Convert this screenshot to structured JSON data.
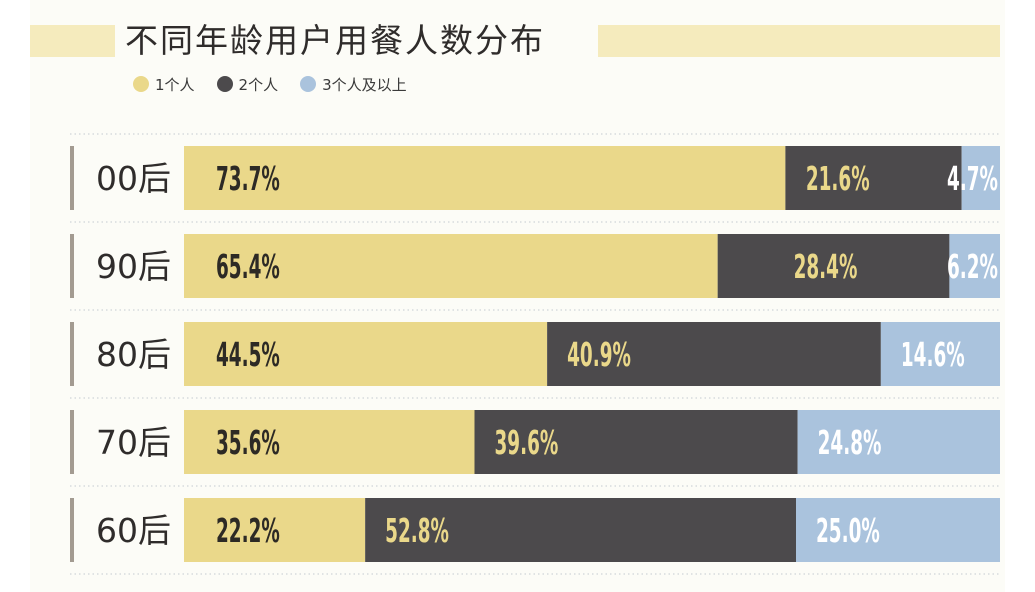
{
  "chart_data": {
    "type": "bar",
    "stacked": true,
    "orientation": "horizontal",
    "title": "不同年龄用户用餐人数分布",
    "categories": [
      "00后",
      "90后",
      "80后",
      "70后",
      "60后"
    ],
    "series": [
      {
        "name": "1个人",
        "color": "#ead88a",
        "values": [
          73.7,
          65.4,
          44.5,
          35.6,
          22.2
        ],
        "labels": [
          "73.7%",
          "65.4%",
          "44.5%",
          "35.6%",
          "22.2%"
        ]
      },
      {
        "name": "2个人",
        "color": "#4c4a4c",
        "values": [
          21.6,
          28.4,
          40.9,
          39.6,
          52.8
        ],
        "labels": [
          "21.6%",
          "28.4%",
          "40.9%",
          "39.6%",
          "52.8%"
        ]
      },
      {
        "name": "3个人及以上",
        "color": "#aac3dd",
        "values": [
          4.7,
          6.2,
          14.6,
          24.8,
          25.0
        ],
        "labels": [
          "4.7%",
          "6.2%",
          "14.6%",
          "24.8%",
          "25.0%"
        ]
      }
    ],
    "label_colors": [
      "#2d2a25",
      "#ead88a",
      "#ffffff"
    ],
    "unit": "%",
    "xlim": [
      0,
      100
    ],
    "legend_position": "top-left",
    "grid": false
  }
}
